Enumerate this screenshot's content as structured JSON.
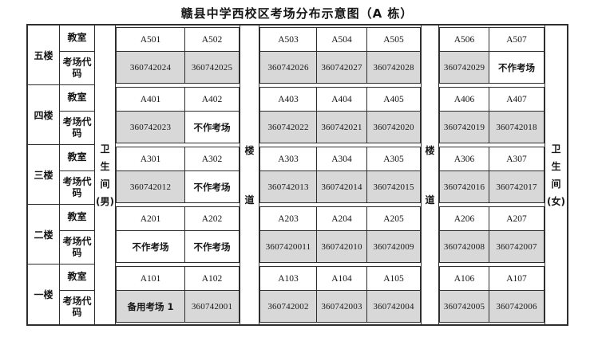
{
  "title": "赣县中学西校区考场分布示意图（A 栋）",
  "row_labels": {
    "classroom": "教室",
    "code": "考场代码"
  },
  "columns": {
    "wc_male": "卫生间(男)",
    "wc_male_chars": [
      "卫",
      "生",
      "间",
      "(男)"
    ],
    "wc_female": "卫生间(女)",
    "wc_female_chars": [
      "卫",
      "生",
      "间",
      "(女)"
    ],
    "corridor": "楼道",
    "corridor_chars": [
      "楼",
      "道"
    ]
  },
  "special_values": {
    "not_used": "不作考场",
    "backup_room": "备用考场 1"
  },
  "floors": [
    {
      "name": "五楼",
      "rooms": [
        "A501",
        "A502",
        "A503",
        "A504",
        "A505",
        "A506",
        "A507"
      ],
      "codes": [
        "360742024",
        "360742025",
        "360742026",
        "360742027",
        "360742028",
        "360742029",
        "不作考场"
      ]
    },
    {
      "name": "四楼",
      "rooms": [
        "A401",
        "A402",
        "A403",
        "A404",
        "A405",
        "A406",
        "A407"
      ],
      "codes": [
        "360742023",
        "不作考场",
        "360742022",
        "360742021",
        "360742020",
        "360742019",
        "360742018"
      ]
    },
    {
      "name": "三楼",
      "rooms": [
        "A301",
        "A302",
        "A303",
        "A304",
        "A305",
        "A306",
        "A307"
      ],
      "codes": [
        "360742012",
        "不作考场",
        "360742013",
        "360742014",
        "360742015",
        "360742016",
        "360742017"
      ]
    },
    {
      "name": "二楼",
      "rooms": [
        "A201",
        "A202",
        "A203",
        "A204",
        "A205",
        "A206",
        "A207"
      ],
      "codes": [
        "不作考场",
        "不作考场",
        "3607420011",
        "360742010",
        "360742009",
        "360742008",
        "360742007"
      ]
    },
    {
      "name": "一楼",
      "rooms": [
        "A101",
        "A102",
        "A103",
        "A104",
        "A105",
        "A106",
        "A107"
      ],
      "codes": [
        "备用考场 1",
        "360742001",
        "360742002",
        "360742003",
        "360742004",
        "360742005",
        "360742006"
      ]
    }
  ],
  "colors": {
    "shaded_cell": "#d8d8d8",
    "grid_line": "#2e2e2e",
    "text": "#161616"
  }
}
